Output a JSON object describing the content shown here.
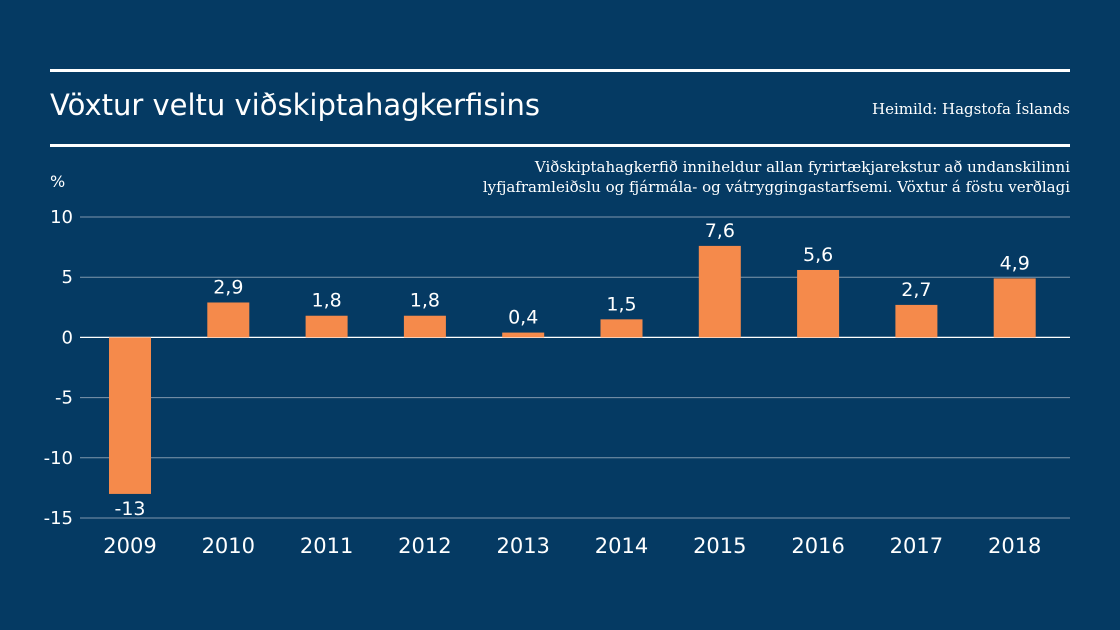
{
  "header": {
    "title": "Vöxtur veltu viðskiptahagkerfisins",
    "source": "Heimild: Hagstofa Íslands"
  },
  "note": {
    "line1": "Viðskiptahagkerfið inniheldur allan fyrirtækjarekstur að undanskilinni",
    "line2": "lyfjaframleiðslu og fjármála- og vátryggingastarfsemi. Vöxtur á föstu verðlagi"
  },
  "colors": {
    "background": "#053a63",
    "bar": "#f58a4b",
    "grid": "#7f97ad",
    "text": "#ffffff"
  },
  "chart_data": {
    "type": "bar",
    "title": "Vöxtur veltu viðskiptahagkerfisins",
    "xlabel": "",
    "ylabel": "%",
    "ylim": [
      -15,
      10
    ],
    "yticks": [
      10,
      5,
      0,
      -5,
      -10,
      -15
    ],
    "ytick_labels": [
      "10",
      "5",
      "0",
      "-5",
      "-10",
      "-15"
    ],
    "grid": true,
    "categories": [
      "2009",
      "2010",
      "2011",
      "2012",
      "2013",
      "2014",
      "2015",
      "2016",
      "2017",
      "2018"
    ],
    "values": [
      -13,
      2.9,
      1.8,
      1.8,
      0.4,
      1.5,
      7.6,
      5.6,
      2.7,
      4.9
    ],
    "labels": [
      "-13",
      "2,9",
      "1,8",
      "1,8",
      "0,4",
      "1,5",
      "7,6",
      "5,6",
      "2,7",
      "4,9"
    ]
  }
}
